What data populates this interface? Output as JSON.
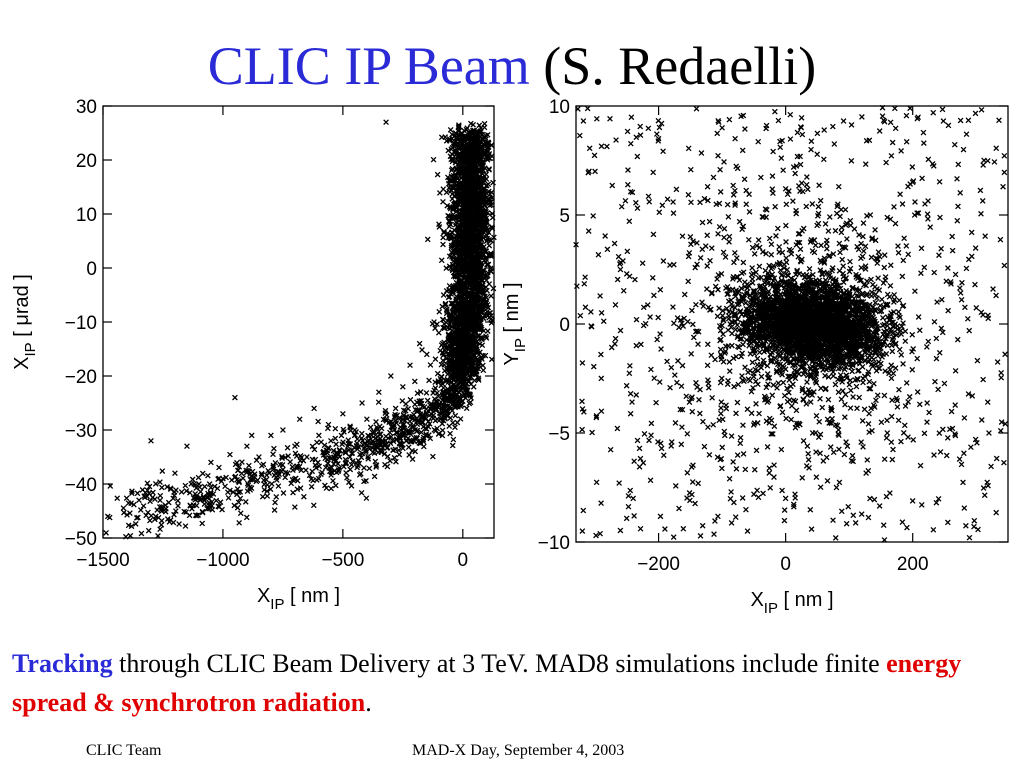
{
  "slide": {
    "title_main": "CLIC IP Beam",
    "title_author": "(S. Redaelli)",
    "caption": {
      "part1": "Tracking",
      "part2": " through CLIC Beam Delivery at 3 TeV. MAD8 simulations include finite ",
      "part3": "energy spread",
      "part4": " & ",
      "part5": "synchrotron radiation",
      "part6": "."
    },
    "footer_left": "CLIC Team",
    "footer_center": "MAD-X Day, September 4, 2003"
  },
  "colors": {
    "title_blue": "#2a2bd6",
    "highlight_red": "#e00000",
    "marker": "#000000"
  },
  "chart_data": [
    {
      "type": "scatter",
      "marker": "x",
      "xlabel_main": "X",
      "xlabel_sub": "IP",
      "xlabel_unit": " [ nm ]",
      "ylabel_main": "X",
      "ylabel_sub": "IP",
      "ylabel_unit": " [ μrad ]",
      "xlim": [
        -1500,
        130
      ],
      "ylim": [
        -50,
        30
      ],
      "xticks": [
        -1500,
        -1000,
        -500,
        0
      ],
      "xtick_labels": [
        "−1500",
        "−1000",
        "−500",
        "0"
      ],
      "yticks": [
        -50,
        -40,
        -30,
        -20,
        -10,
        0,
        10,
        20,
        30
      ],
      "ytick_labels": [
        "−50",
        "−40",
        "−30",
        "−20",
        "−10",
        "0",
        "10",
        "20",
        "30"
      ],
      "distribution": "banana-shaped correlated tail: dense core near x≈0, y from −20 to 25; tail curving to x≈−1500, y≈−45",
      "x": [
        -1480,
        -1350,
        -1300,
        -1280,
        -1200,
        -1150,
        -1100,
        -1050,
        -1000,
        -950,
        -900,
        -880,
        -850,
        -800,
        -780,
        -750,
        -700,
        -680,
        -650,
        -620,
        -600,
        -580,
        -560,
        -550,
        -500,
        -480,
        -450,
        -420,
        -400,
        -380,
        -350,
        -300,
        -280,
        -250,
        -220,
        -200,
        -180,
        -150,
        -120,
        -100,
        -80,
        -50,
        -30,
        0,
        20,
        50,
        80,
        100,
        120,
        -320,
        -30
      ],
      "y": [
        -46,
        -43,
        -32,
        -46,
        -38,
        -33,
        -40,
        -36,
        -39,
        -24,
        -33,
        -31,
        -35,
        -31,
        -38,
        -30,
        -33,
        -28,
        -35,
        -26,
        -31,
        -34,
        -29,
        -32,
        -27,
        -33,
        -30,
        -25,
        -28,
        -31,
        -23,
        -20,
        -26,
        -22,
        -18,
        -21,
        -14,
        -16,
        -10,
        -12,
        -5,
        0,
        8,
        15,
        22,
        18,
        10,
        5,
        14,
        27,
        25
      ]
    },
    {
      "type": "scatter",
      "marker": "x",
      "xlabel_main": "X",
      "xlabel_sub": "IP",
      "xlabel_unit": " [ nm ]",
      "ylabel_main": "Y",
      "ylabel_sub": "IP",
      "ylabel_unit": " [ nm ]",
      "xlim": [
        -330,
        350
      ],
      "ylim": [
        -10,
        10
      ],
      "xticks": [
        -200,
        0,
        200
      ],
      "xtick_labels": [
        "−200",
        "0",
        "200"
      ],
      "yticks": [
        -10,
        -5,
        0,
        5,
        10
      ],
      "ytick_labels": [
        "−10",
        "−5",
        "0",
        "5",
        "10"
      ],
      "distribution": "dense elliptical core centered near x≈40, y≈0 (half-widths ≈120 nm, ≈2 nm) with sparse halo filling the frame",
      "x": [
        -320,
        -300,
        -290,
        -260,
        -240,
        -200,
        -180,
        -150,
        -120,
        -100,
        -60,
        -20,
        0,
        40,
        80,
        120,
        160,
        200,
        240,
        280,
        320,
        340,
        20,
        60,
        100,
        -40,
        140,
        180
      ],
      "y": [
        -9.5,
        7,
        -4,
        2.5,
        -8,
        8.5,
        -2,
        4,
        -6,
        9,
        -9.5,
        6,
        -8,
        8,
        -7.5,
        9.5,
        -5,
        6.5,
        -3,
        8,
        -5,
        -4.5,
        0,
        0.5,
        -0.5,
        0,
        0,
        0.3
      ]
    }
  ]
}
